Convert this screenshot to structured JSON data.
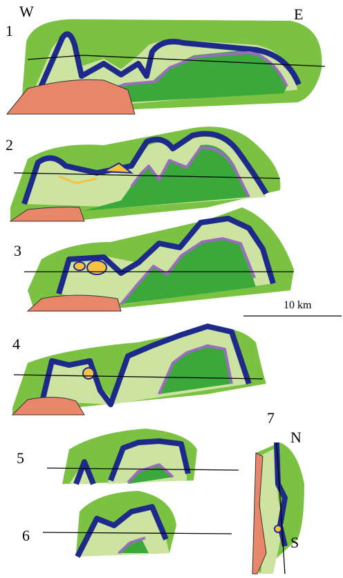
{
  "compass": {
    "west": "W",
    "east": "E",
    "north": "N",
    "south": "S"
  },
  "sections": [
    {
      "label": "1"
    },
    {
      "label": "2"
    },
    {
      "label": "3"
    },
    {
      "label": "4"
    },
    {
      "label": "5"
    },
    {
      "label": "6"
    },
    {
      "label": "7"
    }
  ],
  "scale_bar": {
    "label": "10 km"
  }
}
